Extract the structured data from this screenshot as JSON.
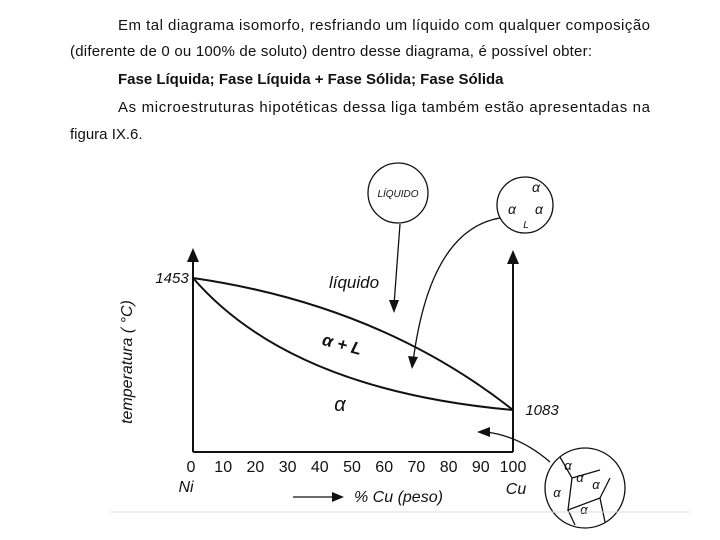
{
  "paragraphs": [
    {
      "lines": [
        "Em tal diagrama isomorfo, resfriando um líquido com qualquer composição",
        "(diferente de 0 ou 100% de soluto) dentro desse diagrama, é possível obter:"
      ]
    },
    {
      "lines": [
        "Fase Líquida; Fase Líquida + Fase Sólida; Fase Sólida"
      ]
    },
    {
      "lines": [
        "As microestruturas hipotéticas dessa liga também estão apresentadas na",
        "figura IX.6."
      ]
    }
  ],
  "figure": {
    "y_axis_label": "temperatura ( °C)",
    "x_axis_label": "% Cu (peso)",
    "x_ticks": [
      0,
      10,
      20,
      30,
      40,
      50,
      60,
      70,
      80,
      90,
      100
    ],
    "left_element": "Ni",
    "right_element": "Cu",
    "left_melting_point": "1453",
    "right_melting_point": "1083",
    "regions": {
      "liquid": "líquido",
      "two_phase": "α + L",
      "solid": "α"
    },
    "microstructures": {
      "liquid": "LÍQUIDO",
      "two_phase": [
        "α",
        "α",
        "α",
        "L"
      ],
      "solid": [
        "α",
        "α",
        "α",
        "α",
        "α"
      ]
    }
  }
}
